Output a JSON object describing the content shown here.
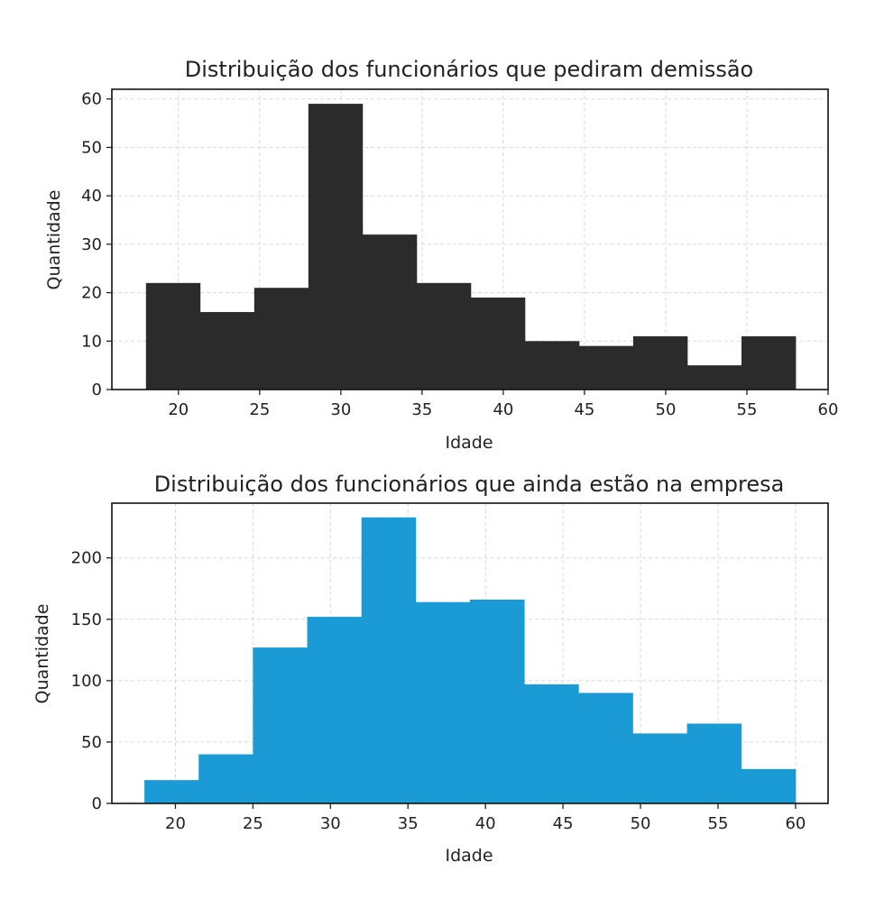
{
  "chart_data": [
    {
      "type": "bar",
      "title": "Distribuição dos funcionários que pediram demissão",
      "xlabel": "Idade",
      "ylabel": "Quantidade",
      "color": "#2b2b2b",
      "bin_edges": [
        18,
        21.333,
        24.667,
        28,
        31.333,
        34.667,
        38,
        41.333,
        44.667,
        48,
        51.333,
        54.667,
        58
      ],
      "values": [
        22,
        16,
        21,
        59,
        32,
        22,
        19,
        10,
        9,
        11,
        5,
        11
      ],
      "xlim": [
        15.9,
        60
      ],
      "ylim": [
        0,
        62
      ],
      "xticks": [
        20,
        25,
        30,
        35,
        40,
        45,
        50,
        55,
        60
      ],
      "yticks": [
        0,
        10,
        20,
        30,
        40,
        50,
        60
      ],
      "grid": true
    },
    {
      "type": "bar",
      "title": "Distribuição dos funcionários que ainda estão na empresa",
      "xlabel": "Idade",
      "ylabel": "Quantidade",
      "color": "#1a9bd6",
      "bin_edges": [
        18,
        21.5,
        25,
        28.5,
        32,
        35.5,
        39,
        42.5,
        46,
        49.5,
        53,
        56.5,
        60
      ],
      "values": [
        19,
        40,
        127,
        152,
        233,
        164,
        166,
        97,
        90,
        57,
        65,
        28
      ],
      "xlim": [
        15.9,
        62.1
      ],
      "ylim": [
        0,
        244.6
      ],
      "xticks": [
        20,
        25,
        30,
        35,
        40,
        45,
        50,
        55,
        60
      ],
      "yticks": [
        0,
        50,
        100,
        150,
        200
      ],
      "grid": true
    }
  ]
}
